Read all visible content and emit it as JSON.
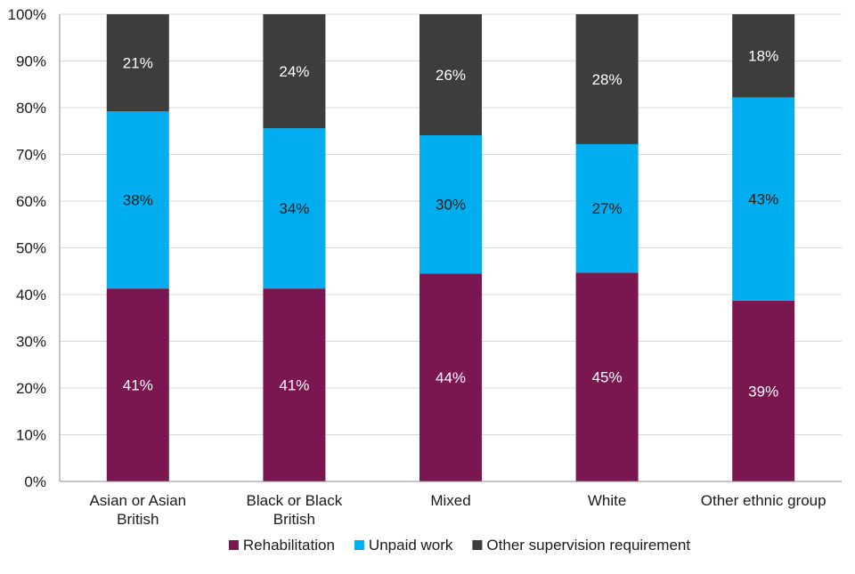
{
  "chart_data": {
    "type": "bar",
    "stacked": true,
    "percent": true,
    "title": "",
    "xlabel": "",
    "ylabel": "",
    "ylim": [
      0,
      100
    ],
    "y_ticks": [
      "0%",
      "10%",
      "20%",
      "30%",
      "40%",
      "50%",
      "60%",
      "70%",
      "80%",
      "90%",
      "100%"
    ],
    "y_tick_values": [
      0,
      10,
      20,
      30,
      40,
      50,
      60,
      70,
      80,
      90,
      100
    ],
    "grid": true,
    "legend_position": "bottom",
    "categories": [
      [
        "Asian or Asian",
        "British"
      ],
      [
        "Black or Black",
        "British"
      ],
      [
        "Mixed"
      ],
      [
        "White"
      ],
      [
        "Other ethnic group"
      ]
    ],
    "series": [
      {
        "name": "Rehabilitation",
        "color": "#7B1750",
        "values": [
          41.3,
          41.3,
          44.5,
          44.7,
          38.7
        ],
        "labels": [
          "41%",
          "41%",
          "44%",
          "45%",
          "39%"
        ],
        "label_color": "#ffffff"
      },
      {
        "name": "Unpaid work",
        "color": "#00AEEF",
        "values": [
          37.9,
          34.3,
          29.6,
          27.5,
          43.5
        ],
        "labels": [
          "38%",
          "34%",
          "30%",
          "27%",
          "43%"
        ],
        "label_color": "#1a1a1a"
      },
      {
        "name": "Other supervision requirement",
        "color": "#3D3D3D",
        "values": [
          20.8,
          24.4,
          25.9,
          27.8,
          17.8
        ],
        "labels": [
          "21%",
          "24%",
          "26%",
          "28%",
          "18%"
        ],
        "label_color": "#ffffff"
      }
    ]
  }
}
